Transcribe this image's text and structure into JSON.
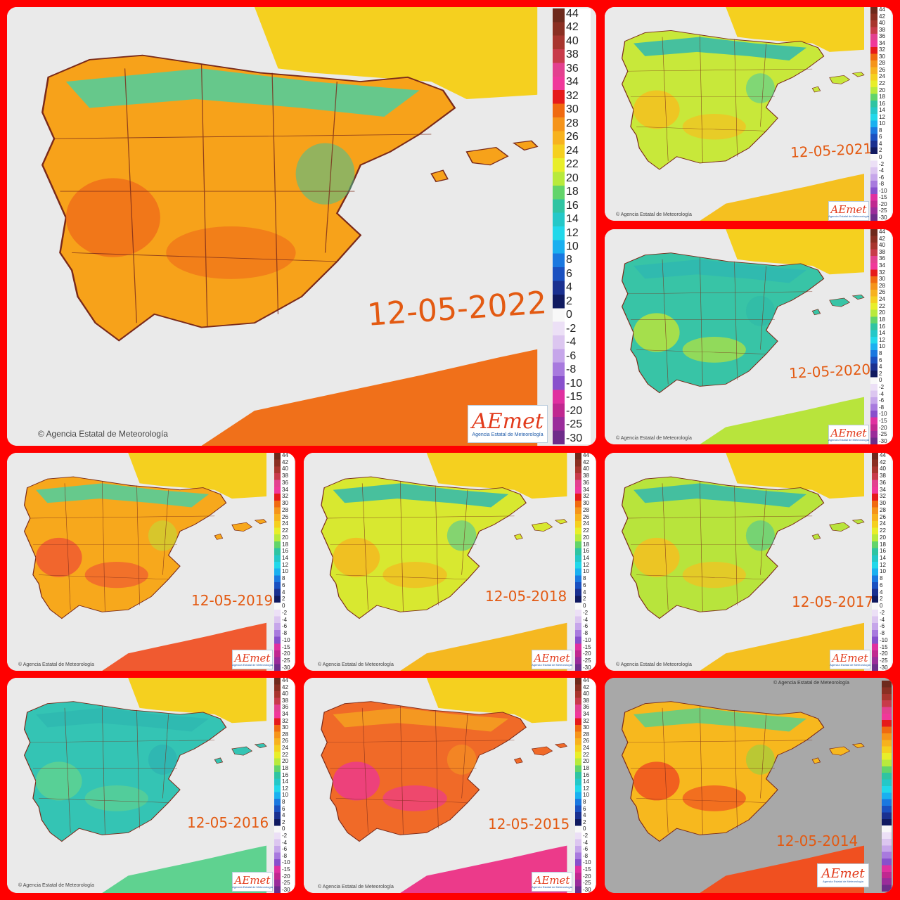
{
  "legend": {
    "labels": [
      "44",
      "42",
      "40",
      "38",
      "36",
      "34",
      "32",
      "30",
      "28",
      "26",
      "24",
      "22",
      "20",
      "18",
      "16",
      "14",
      "12",
      "10",
      "8",
      "6",
      "4",
      "2",
      "0",
      "-2",
      "-4",
      "-6",
      "-8",
      "-10",
      "-15",
      "-20",
      "-25",
      "-30"
    ],
    "colors": [
      "#6e2a1c",
      "#8a2f22",
      "#a8352e",
      "#c83b4a",
      "#e3408f",
      "#f0389a",
      "#e61a1a",
      "#f06a10",
      "#f5941a",
      "#f7b21e",
      "#f5d01f",
      "#e8ee2a",
      "#b8ea3c",
      "#62d46a",
      "#2fc4a2",
      "#25c8c8",
      "#22d8ea",
      "#1ab0f0",
      "#1a78e0",
      "#1a50c0",
      "#1a3090",
      "#101a60",
      "#f8f8f8",
      "#ece0f6",
      "#dcc6f0",
      "#c6a6ea",
      "#a87ade",
      "#8850cc",
      "#e030a0",
      "#c02890",
      "#9a2c9a",
      "#6e2c8a"
    ]
  },
  "panels": [
    {
      "date": "12-05-2022",
      "credit": "Agencia Estatal de Meteorología",
      "logo": "AEmet",
      "logo_sub": "Agencia Estatal de Meteorología",
      "palette": {
        "main": "#f7a21a",
        "hot": "#f0701a",
        "cold": "#2fc4a2",
        "north": "#4ccfa0"
      }
    },
    {
      "date": "12-05-2021",
      "credit": "Agencia Estatal de Meteorología",
      "logo": "AEmet",
      "logo_sub": "Agencia Estatal de Meteorología",
      "palette": {
        "main": "#c8e83a",
        "hot": "#f5c020",
        "cold": "#38c6b0",
        "north": "#2fb8b0"
      }
    },
    {
      "date": "12-05-2020",
      "credit": "Agencia Estatal de Meteorología",
      "logo": "AEmet",
      "logo_sub": "Agencia Estatal de Meteorología",
      "palette": {
        "main": "#38c4a6",
        "hot": "#b8e43c",
        "cold": "#2bb6a8",
        "north": "#2fb8b0"
      }
    },
    {
      "date": "12-05-2019",
      "credit": "Agencia Estatal de Meteorología",
      "logo": "AEmet",
      "logo_sub": "Agencia Estatal de Meteorología",
      "palette": {
        "main": "#f7a81c",
        "hot": "#f05a30",
        "cold": "#b8e43c",
        "north": "#4ccfa0"
      }
    },
    {
      "date": "12-05-2018",
      "credit": "Agencia Estatal de Meteorología",
      "logo": "AEmet",
      "logo_sub": "Agencia Estatal de Meteorología",
      "palette": {
        "main": "#d8e830",
        "hot": "#f5b820",
        "cold": "#2fc0b0",
        "north": "#2fb8b0"
      }
    },
    {
      "date": "12-05-2017",
      "credit": "Agencia Estatal de Meteorología",
      "logo": "AEmet",
      "logo_sub": "Agencia Estatal de Meteorología",
      "palette": {
        "main": "#b8e43c",
        "hot": "#f5c020",
        "cold": "#34c2aa",
        "north": "#2fb8b0"
      }
    },
    {
      "date": "12-05-2016",
      "credit": "Agencia Estatal de Meteorología",
      "logo": "AEmet",
      "logo_sub": "Agencia Estatal de Meteorología",
      "palette": {
        "main": "#34c4b4",
        "hot": "#5fd290",
        "cold": "#2aaab0",
        "north": "#2fb8b0"
      }
    },
    {
      "date": "12-05-2015",
      "credit": "Agencia Estatal de Meteorología",
      "logo": "AEmet",
      "logo_sub": "Agencia Estatal de Meteorología",
      "palette": {
        "main": "#f06a28",
        "hot": "#ec3a8a",
        "cold": "#f5a020",
        "north": "#f5a020"
      }
    },
    {
      "date": "12-05-2014",
      "credit": "Agencia Estatal de Meteorología",
      "logo": "AEmet",
      "logo_sub": "Agencia Estatal de Meteorología",
      "palette": {
        "main": "#f7b81e",
        "hot": "#f05020",
        "cold": "#7ed84a",
        "north": "#5ccf8a"
      }
    }
  ]
}
